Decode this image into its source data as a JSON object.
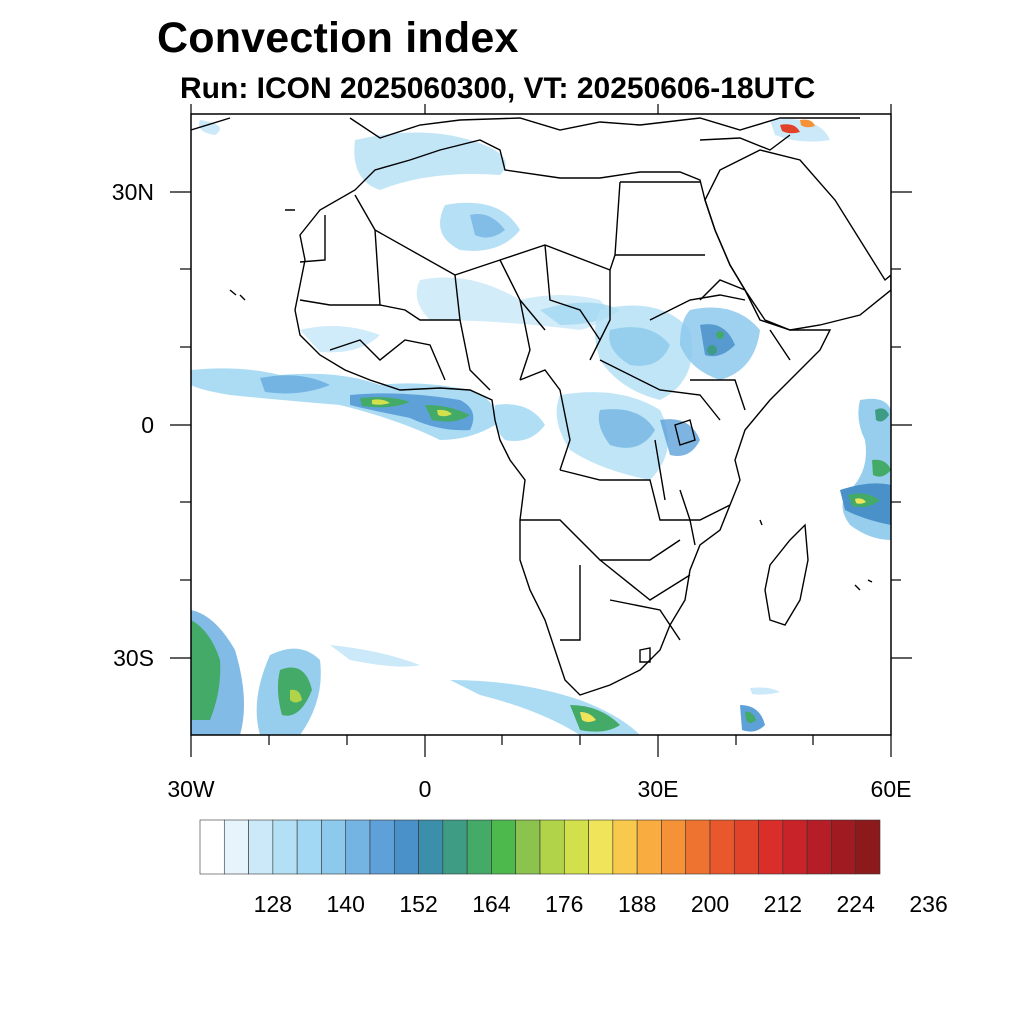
{
  "title": "Convection index",
  "subtitle": "Run: ICON 2025060300,  VT: 20250606-18UTC",
  "map": {
    "lon_range": [
      -30,
      60
    ],
    "lat_range": [
      -40,
      40
    ],
    "x_ticks": [
      "30W",
      "0",
      "30E",
      "60E"
    ],
    "y_ticks": [
      "30N",
      "0",
      "30S"
    ],
    "coastline_color": "#000000"
  },
  "colorbar": {
    "tick_labels": [
      "128",
      "140",
      "152",
      "164",
      "176",
      "188",
      "200",
      "212",
      "224",
      "236"
    ],
    "colors": [
      "#ffffff",
      "#e6f4fc",
      "#cbe9f8",
      "#b4e0f5",
      "#a2d8f3",
      "#8cc9ec",
      "#74b4e3",
      "#5ea1d9",
      "#4a91c9",
      "#3c8faa",
      "#3f9c84",
      "#44aa68",
      "#4db84c",
      "#8bc34e",
      "#b0d34a",
      "#d2e04b",
      "#f0e55a",
      "#f8c94c",
      "#f9ad40",
      "#f59237",
      "#ee7330",
      "#e8582c",
      "#e04329",
      "#d92e2a",
      "#c9232a",
      "#b51d27",
      "#a01b21",
      "#8c1a1c"
    ]
  }
}
